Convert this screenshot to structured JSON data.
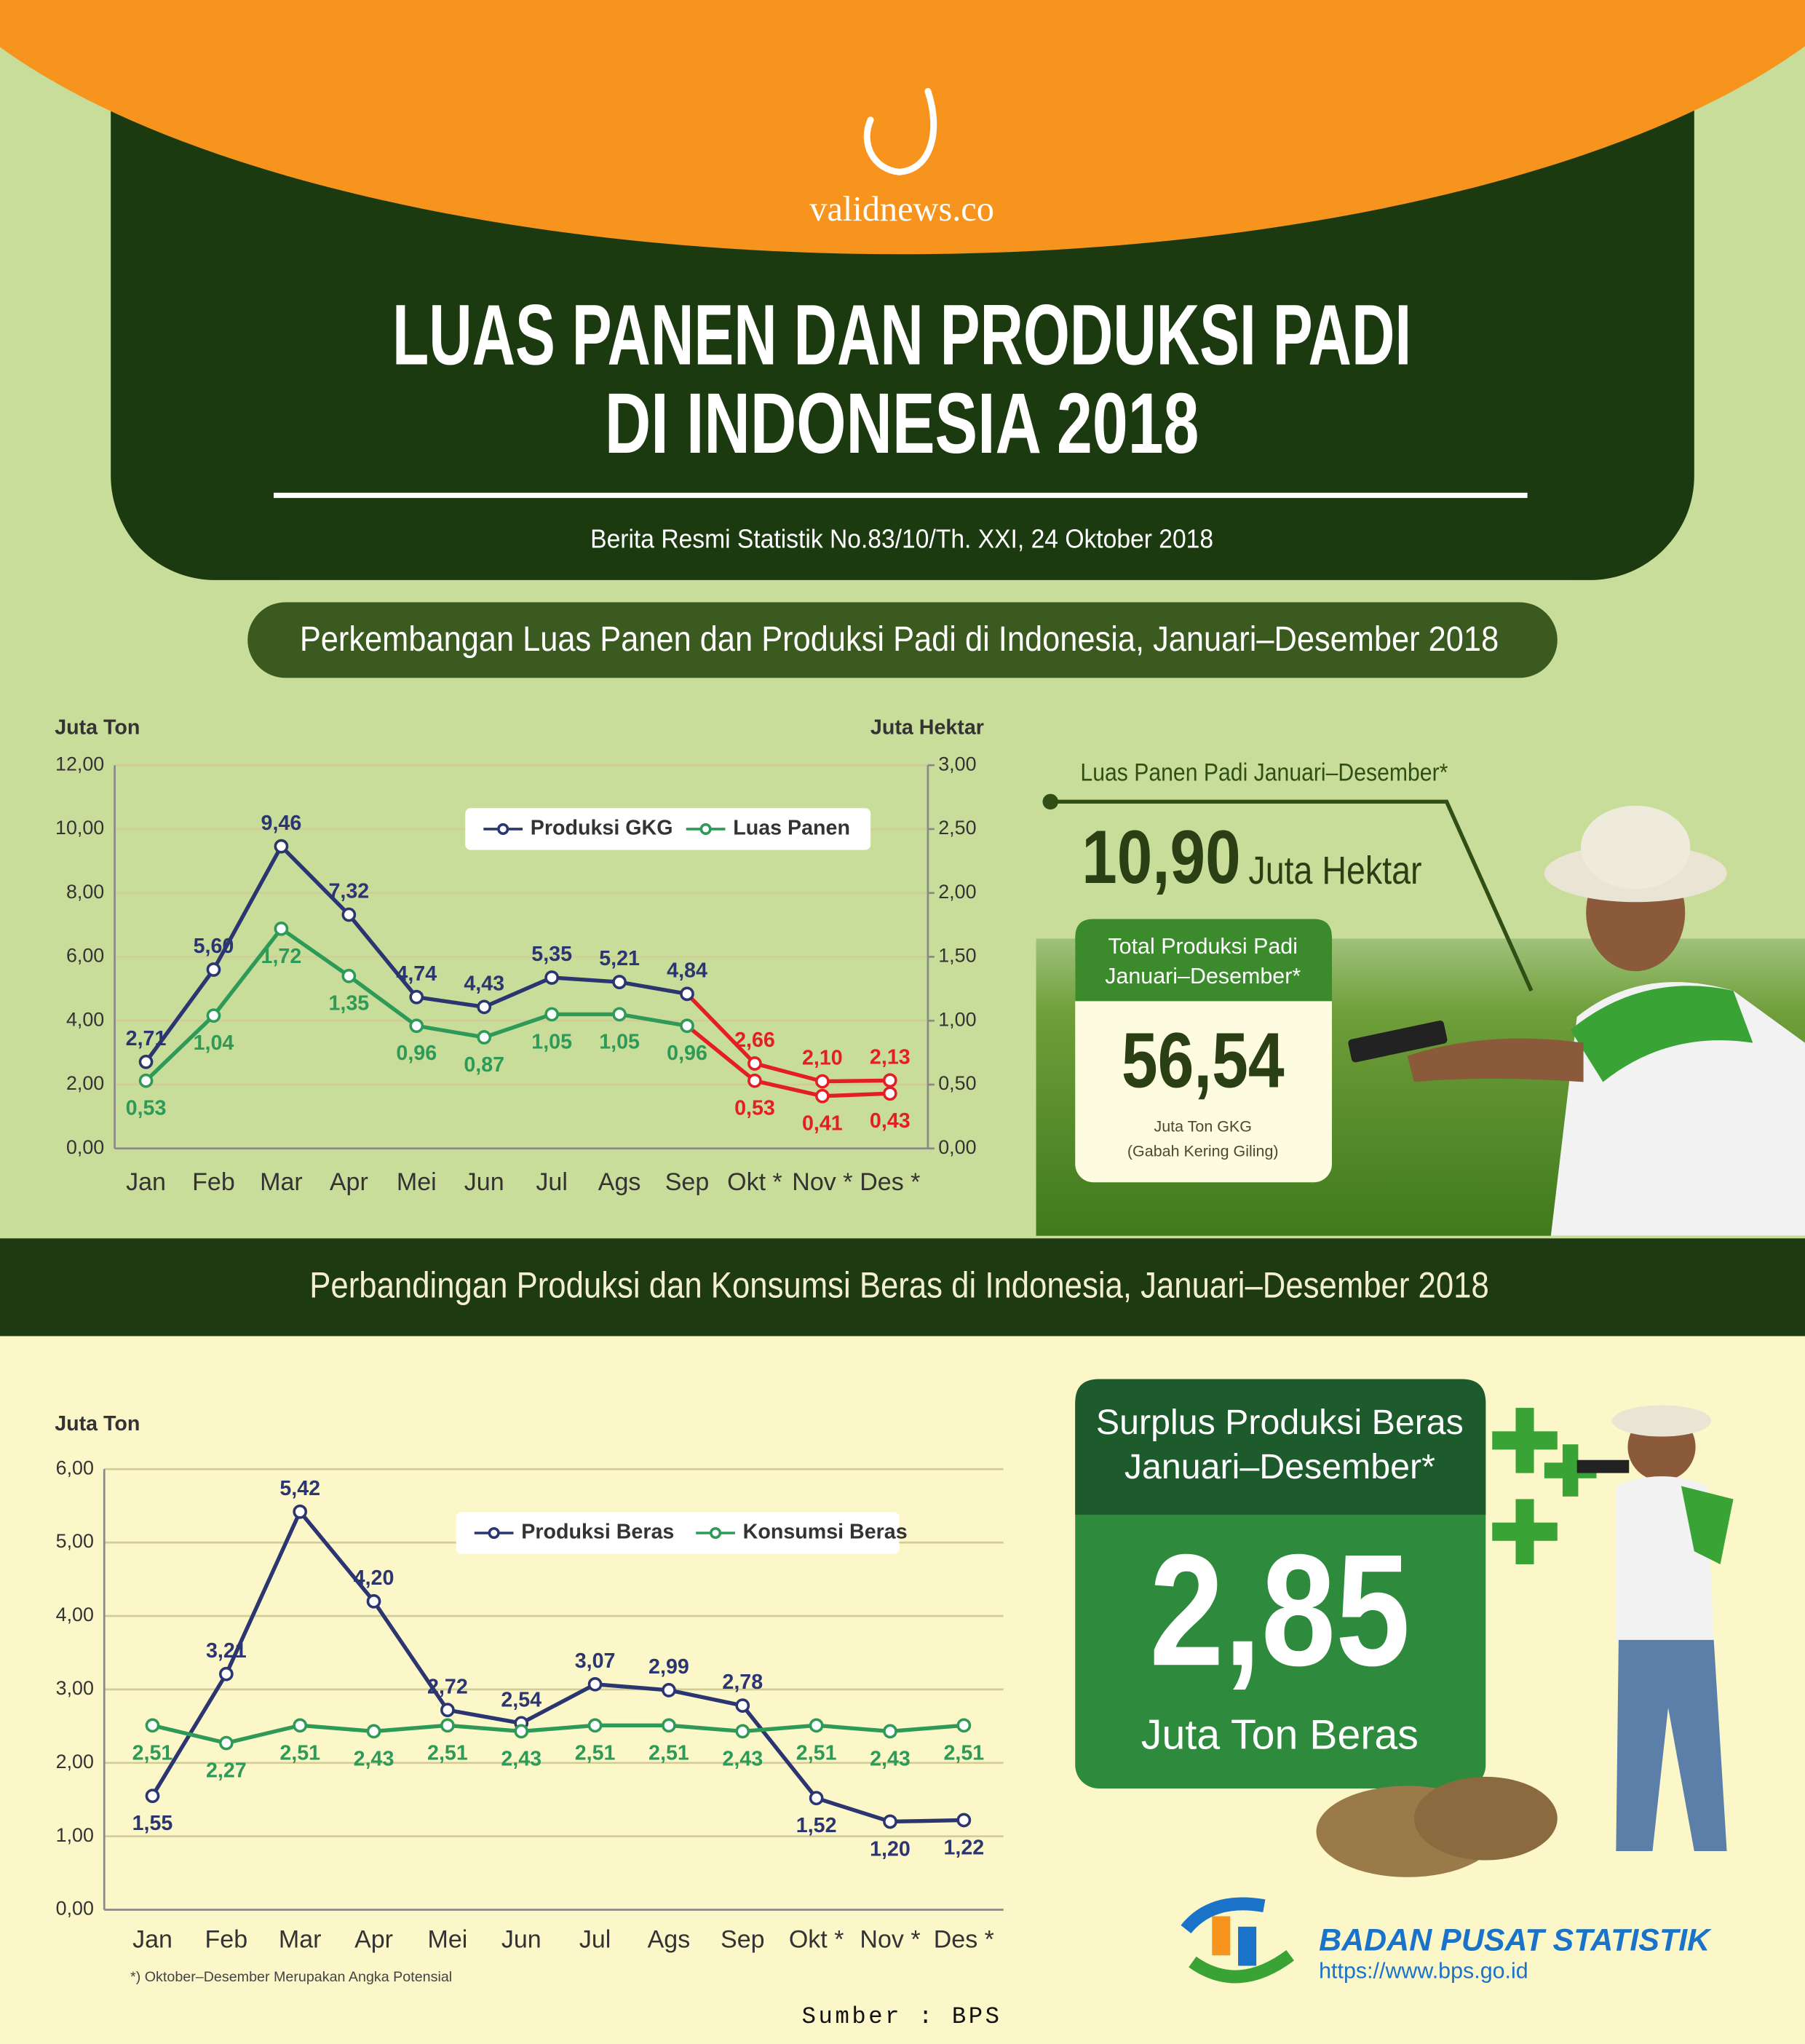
{
  "header": {
    "brand": "validnews.co",
    "title_lines": [
      "LUAS PANEN DAN PRODUKSI PADI",
      "DI INDONESIA 2018"
    ],
    "subtitle": "Berita Resmi Statistik No.83/10/Th. XXI, 24 Oktober 2018"
  },
  "chart_data": [
    {
      "type": "line",
      "title": "Perkembangan Luas Panen dan Produksi Padi di Indonesia, Januari–Desember 2018",
      "y_label": "Juta Ton",
      "y2_label": "Juta Hektar",
      "categories": [
        "Jan",
        "Feb",
        "Mar",
        "Apr",
        "Mei",
        "Jun",
        "Jul",
        "Ags",
        "Sep",
        "Okt *",
        "Nov *",
        "Des *"
      ],
      "ylim": [
        0,
        12
      ],
      "yticks": [
        {
          "value": 0,
          "label": "0,00"
        },
        {
          "value": 2,
          "label": "2,00"
        },
        {
          "value": 4,
          "label": "4,00"
        },
        {
          "value": 6,
          "label": "6,00"
        },
        {
          "value": 8,
          "label": "8,00"
        },
        {
          "value": 10,
          "label": "10,00"
        },
        {
          "value": 12,
          "label": "12,00"
        }
      ],
      "y2lim": [
        0,
        3
      ],
      "y2ticks": [
        {
          "value": 0,
          "label": "0,00"
        },
        {
          "value": 0.5,
          "label": "0,50"
        },
        {
          "value": 1,
          "label": "1,00"
        },
        {
          "value": 1.5,
          "label": "1,50"
        },
        {
          "value": 2,
          "label": "2,00"
        },
        {
          "value": 2.5,
          "label": "2,50"
        },
        {
          "value": 3,
          "label": "3,00"
        }
      ],
      "grid": true,
      "series": [
        {
          "name": "Produksi GKG",
          "color": "#2b3570",
          "values": [
            2.71,
            5.6,
            9.46,
            7.32,
            4.74,
            4.43,
            5.35,
            5.21,
            4.84,
            2.66,
            2.1,
            2.13
          ],
          "value_labels": [
            "2,71",
            "5,60",
            "9,46",
            "7,32",
            "4,74",
            "4,43",
            "5,35",
            "5,21",
            "4,84",
            "2,66",
            "2,10",
            "2,13"
          ],
          "point_colors": [
            "#2b3570",
            "#2b3570",
            "#2b3570",
            "#2b3570",
            "#2b3570",
            "#2b3570",
            "#2b3570",
            "#2b3570",
            "#2b3570",
            "#e31e24",
            "#e31e24",
            "#e31e24"
          ]
        },
        {
          "name": "Luas Panen",
          "color": "#2e9a57",
          "axis": "y2",
          "values": [
            0.53,
            1.04,
            1.72,
            1.35,
            0.96,
            0.87,
            1.05,
            1.05,
            0.96,
            0.53,
            0.41,
            0.43
          ],
          "value_labels": [
            "0,53",
            "1,04",
            "1,72",
            "1,35",
            "0,96",
            "0,87",
            "1,05",
            "1,05",
            "0,96",
            "0,53",
            "0,41",
            "0,43"
          ],
          "point_colors": [
            "#2e9a57",
            "#2e9a57",
            "#2e9a57",
            "#2e9a57",
            "#2e9a57",
            "#2e9a57",
            "#2e9a57",
            "#2e9a57",
            "#2e9a57",
            "#e31e24",
            "#e31e24",
            "#e31e24"
          ]
        }
      ]
    },
    {
      "type": "line",
      "title": "Perbandingan Produksi dan Konsumsi Beras di Indonesia, Januari–Desember 2018",
      "y_label": "Juta Ton",
      "categories": [
        "Jan",
        "Feb",
        "Mar",
        "Apr",
        "Mei",
        "Jun",
        "Jul",
        "Ags",
        "Sep",
        "Okt *",
        "Nov *",
        "Des *"
      ],
      "ylim": [
        0,
        6
      ],
      "yticks": [
        {
          "value": 0,
          "label": "0,00"
        },
        {
          "value": 1,
          "label": "1,00"
        },
        {
          "value": 2,
          "label": "2,00"
        },
        {
          "value": 3,
          "label": "3,00"
        },
        {
          "value": 4,
          "label": "4,00"
        },
        {
          "value": 5,
          "label": "5,00"
        },
        {
          "value": 6,
          "label": "6,00"
        }
      ],
      "grid": true,
      "note": "*) Oktober–Desember Merupakan Angka Potensial",
      "series": [
        {
          "name": "Produksi Beras",
          "color": "#2b3570",
          "values": [
            1.55,
            3.21,
            5.42,
            4.2,
            2.72,
            2.54,
            3.07,
            2.99,
            2.78,
            1.52,
            1.2,
            1.22
          ],
          "value_labels": [
            "1,55",
            "3,21",
            "5,42",
            "4,20",
            "2,72",
            "2,54",
            "3,07",
            "2,99",
            "2,78",
            "1,52",
            "1,20",
            "1,22"
          ]
        },
        {
          "name": "Konsumsi Beras",
          "color": "#2e9a57",
          "values": [
            2.51,
            2.27,
            2.51,
            2.43,
            2.51,
            2.43,
            2.51,
            2.51,
            2.43,
            2.51,
            2.43,
            2.51
          ],
          "value_labels": [
            "2,51",
            "2,27",
            "2,51",
            "2,43",
            "2,51",
            "2,43",
            "2,51",
            "2,51",
            "2,43",
            "2,51",
            "2,43",
            "2,51"
          ]
        }
      ]
    }
  ],
  "highlights": {
    "luas_panen": {
      "label": "Luas Panen Padi Januari–Desember*",
      "value": "10,90",
      "unit": "Juta Hektar"
    },
    "produksi": {
      "label_lines": [
        "Total Produksi Padi",
        "Januari–Desember*"
      ],
      "value": "56,54",
      "unit_lines": [
        "Juta Ton GKG",
        "(Gabah Kering Giling)"
      ]
    },
    "surplus": {
      "label_lines": [
        "Surplus Produksi Beras",
        "Januari–Desember*"
      ],
      "value": "2,85",
      "unit": "Juta Ton Beras"
    }
  },
  "footer": {
    "org": "BADAN PUSAT STATISTIK",
    "url": "https://www.bps.go.id",
    "source": "Sumber : BPS"
  }
}
